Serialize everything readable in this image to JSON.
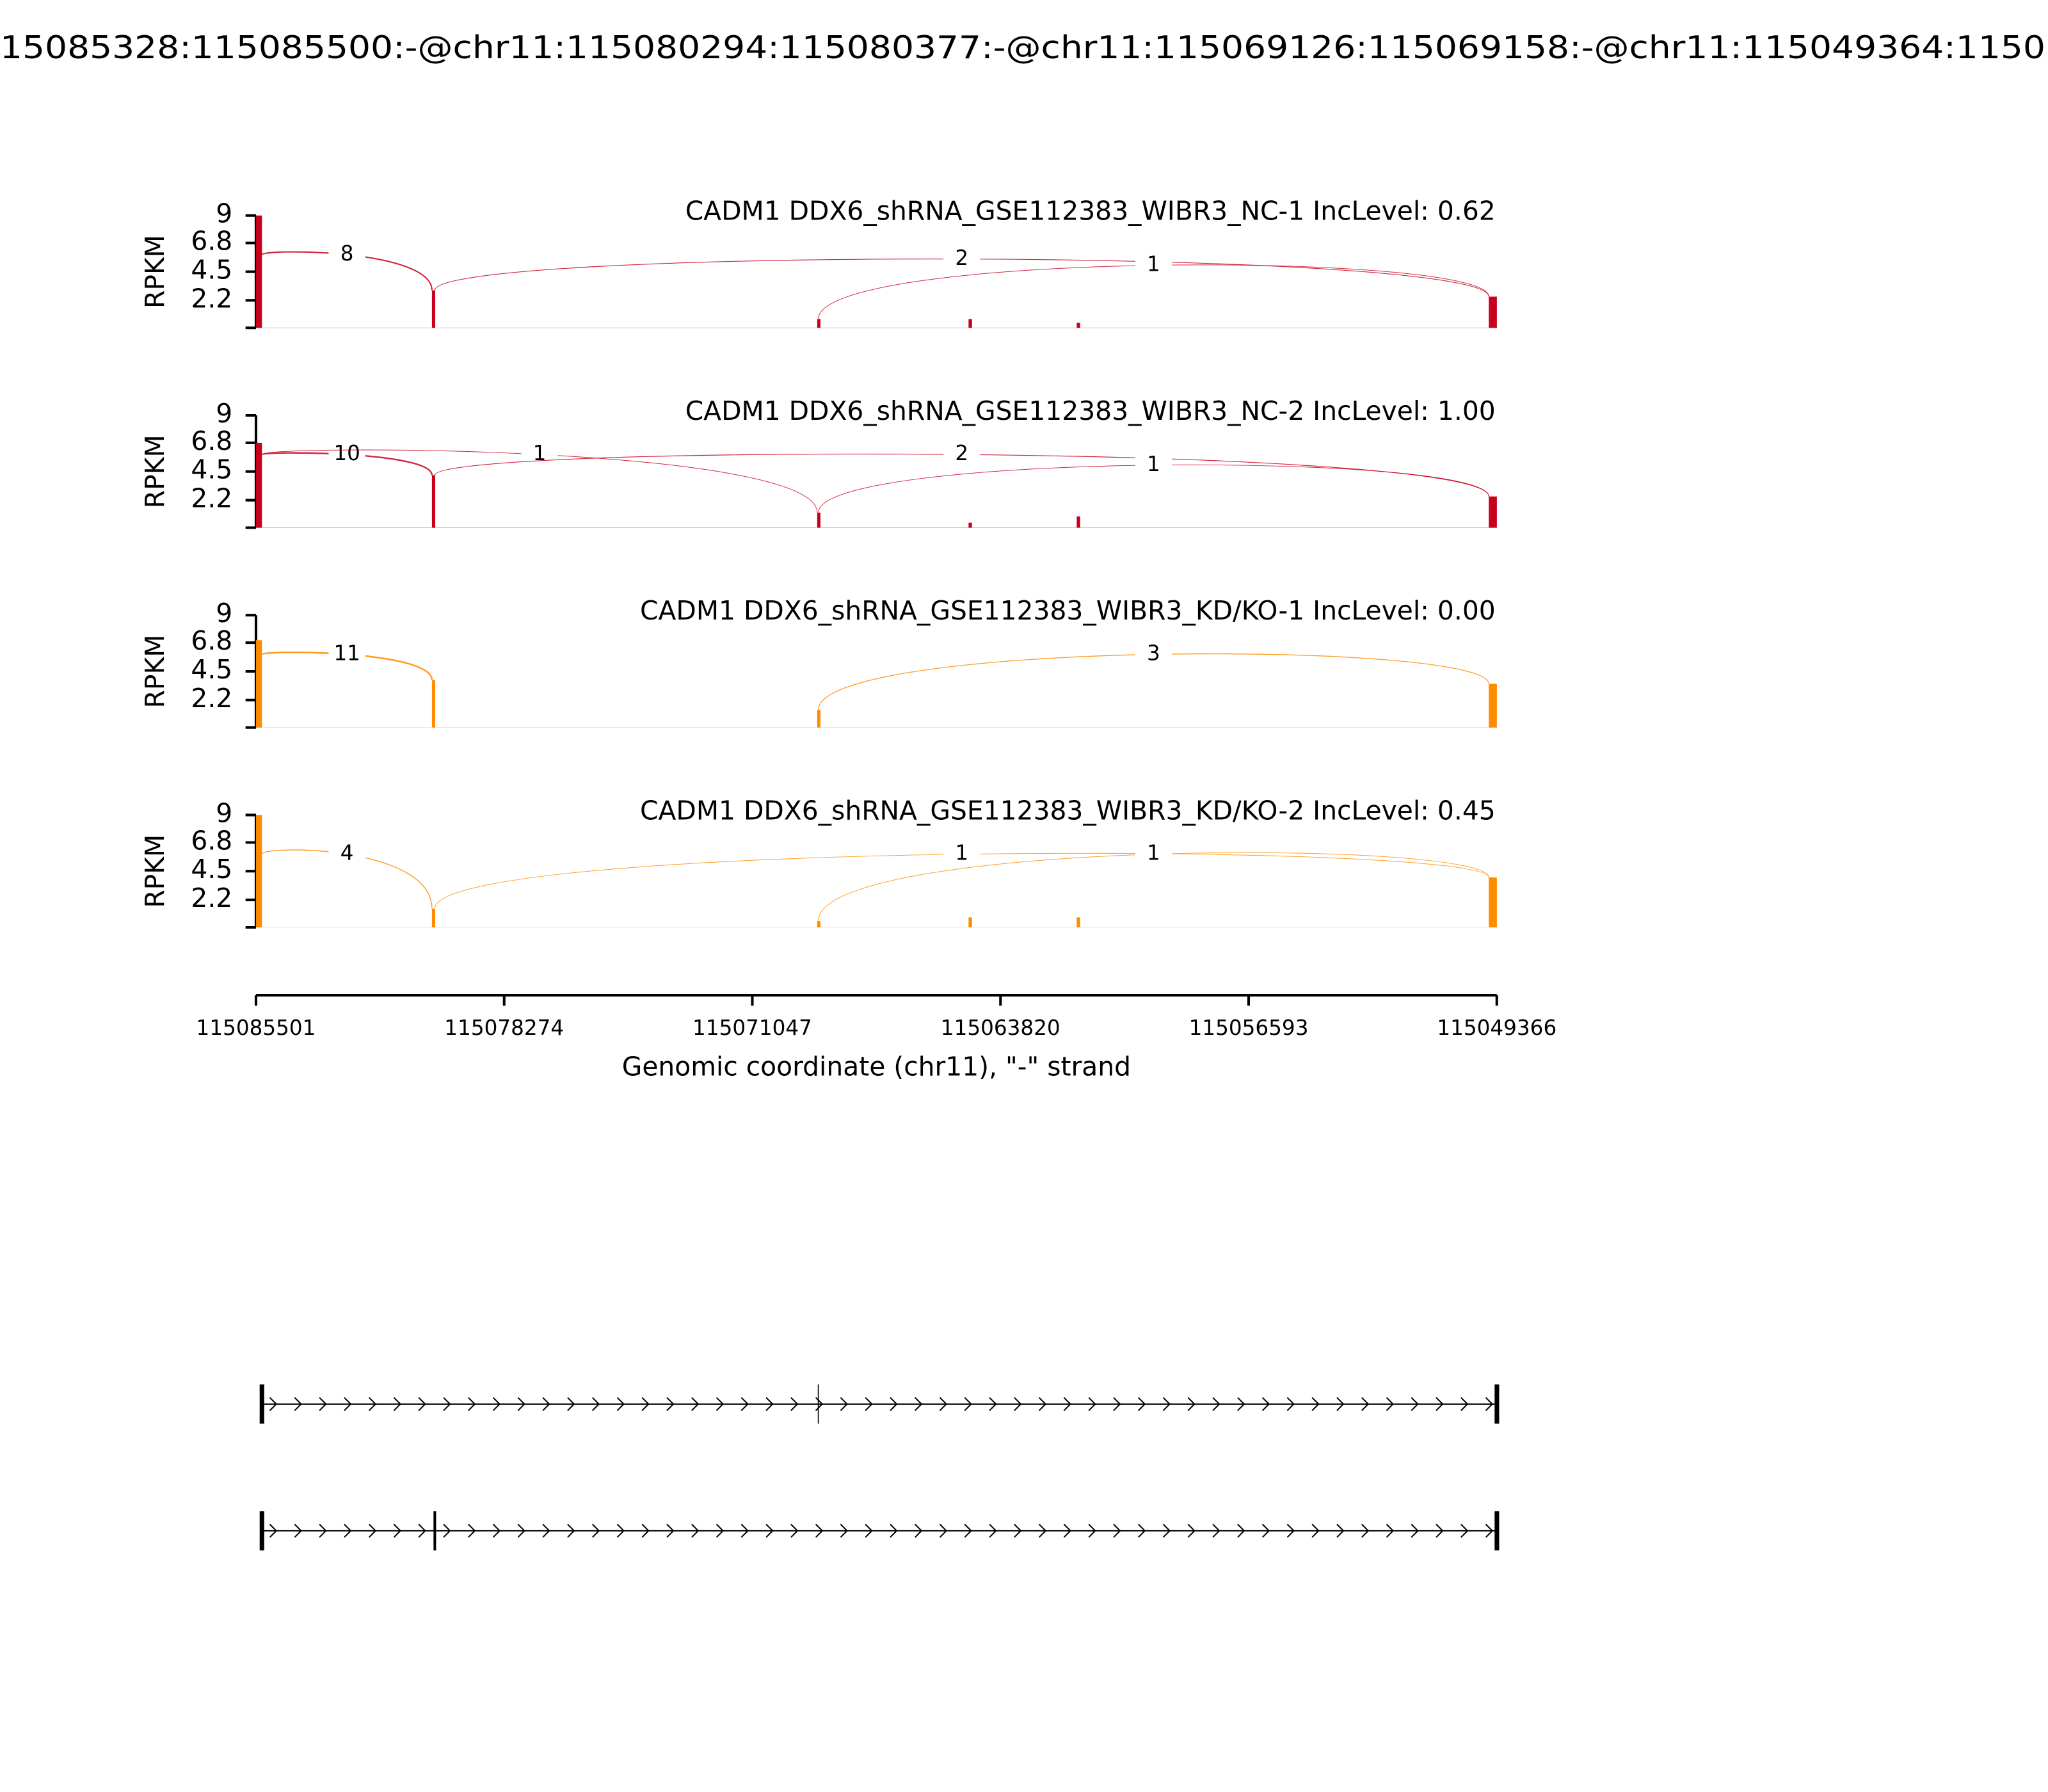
{
  "chart_data": {
    "type": "sashimi",
    "title": "15085328:115085500:-@chr11:115080294:115080377:-@chr11:115069126:115069158:-@chr11:115049364:1150",
    "xlabel": "Genomic coordinate (chr11), \"-\" strand",
    "ylabel": "RPKM",
    "xlim": [
      115085501,
      115049366
    ],
    "xticks": [
      115085501,
      115078274,
      115071047,
      115063820,
      115056593,
      115049366
    ],
    "ylim": [
      0,
      9
    ],
    "yticks": [
      2.2,
      4.5,
      6.8,
      9
    ],
    "regions": [
      {
        "start": 115085500,
        "end": 115085328
      },
      {
        "start": 115080377,
        "end": 115080294
      },
      {
        "start": 115069158,
        "end": 115069126
      },
      {
        "start": 115064750,
        "end": 115064650
      },
      {
        "start": 115061600,
        "end": 115061500
      },
      {
        "start": 115049600,
        "end": 115049364
      }
    ],
    "panels": [
      {
        "label": "CADM1 DDX6_shRNA_GSE112383_WIBR3_NC-1 IncLevel: 0.62",
        "color": "#c9001c",
        "coverage": [
          9,
          3.0,
          0.7,
          0.7,
          0.4,
          2.5
        ],
        "junctions": [
          {
            "start": 115085328,
            "end": 115080377,
            "count": 8
          },
          {
            "start": 115080294,
            "end": 115049600,
            "count": 2
          },
          {
            "start": 115069126,
            "end": 115049600,
            "count": 1
          }
        ]
      },
      {
        "label": "CADM1 DDX6_shRNA_GSE112383_WIBR3_NC-2 IncLevel: 1.00",
        "color": "#c9001c",
        "coverage": [
          6.8,
          4.2,
          1.2,
          0.4,
          0.9,
          2.5
        ],
        "junctions": [
          {
            "start": 115085328,
            "end": 115080377,
            "count": 10
          },
          {
            "start": 115085328,
            "end": 115069158,
            "count": 1
          },
          {
            "start": 115080294,
            "end": 115049600,
            "count": 2
          },
          {
            "start": 115069126,
            "end": 115049600,
            "count": 1
          }
        ]
      },
      {
        "label": "CADM1 DDX6_shRNA_GSE112383_WIBR3_KD/KO-1 IncLevel: 0.00",
        "color": "#ff8c00",
        "coverage": [
          7,
          3.8,
          1.4,
          0,
          0,
          3.5
        ],
        "junctions": [
          {
            "start": 115085328,
            "end": 115080377,
            "count": 11
          },
          {
            "start": 115069126,
            "end": 115049600,
            "count": 3
          }
        ]
      },
      {
        "label": "CADM1 DDX6_shRNA_GSE112383_WIBR3_KD/KO-2 IncLevel: 0.45",
        "color": "#ff8c00",
        "coverage": [
          9,
          1.5,
          0.5,
          0.8,
          0.8,
          4.0
        ],
        "junctions": [
          {
            "start": 115085328,
            "end": 115080377,
            "count": 4
          },
          {
            "start": 115080294,
            "end": 115049600,
            "count": 1
          },
          {
            "start": 115069126,
            "end": 115049600,
            "count": 1
          }
        ]
      }
    ]
  }
}
